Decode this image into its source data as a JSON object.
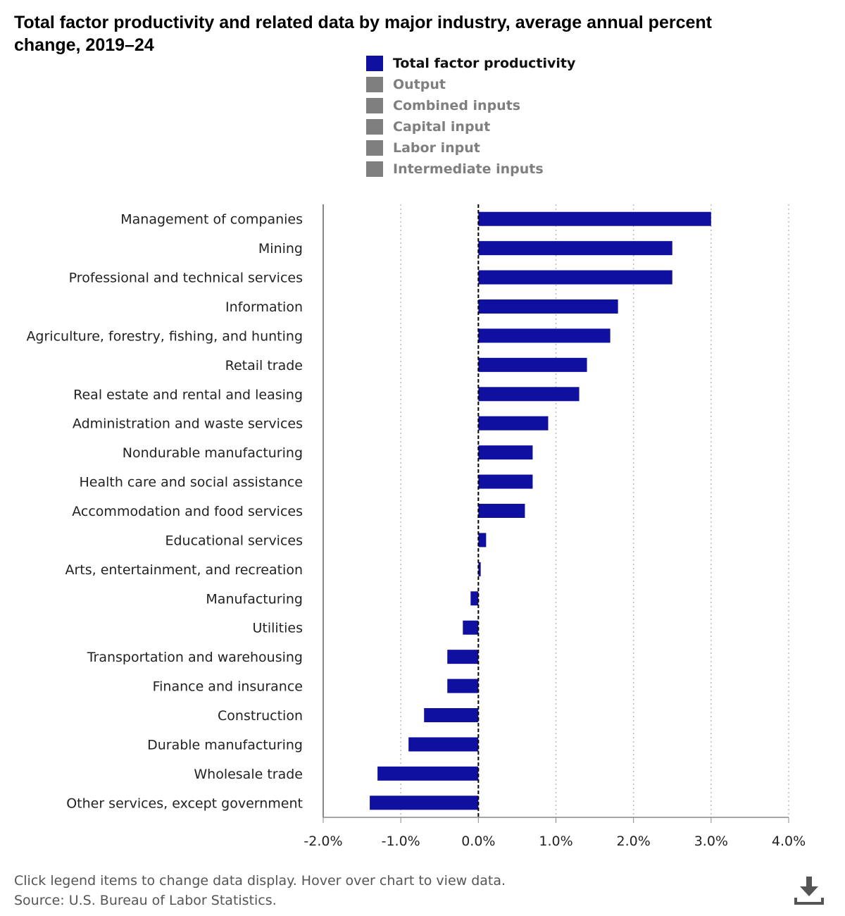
{
  "title": "Total factor productivity and related data by major industry, average annual percent change, 2019–24",
  "legend": [
    {
      "label": "Total factor productivity",
      "active": true,
      "color": "#1010a0"
    },
    {
      "label": "Output",
      "active": false,
      "color": "#7f7f7f"
    },
    {
      "label": "Combined inputs",
      "active": false,
      "color": "#7f7f7f"
    },
    {
      "label": "Capital input",
      "active": false,
      "color": "#7f7f7f"
    },
    {
      "label": "Labor input",
      "active": false,
      "color": "#7f7f7f"
    },
    {
      "label": "Intermediate inputs",
      "active": false,
      "color": "#7f7f7f"
    }
  ],
  "notes": {
    "line1": "Click legend items to change data display. Hover over chart to view data.",
    "line2": "Source: U.S. Bureau of Labor Statistics."
  },
  "icons": {
    "download": "download-icon"
  },
  "chart_data": {
    "type": "bar",
    "orientation": "horizontal",
    "title": "Total factor productivity and related data by major industry, average annual percent change, 2019–24",
    "categories": [
      "Management of companies",
      "Mining",
      "Professional and technical services",
      "Information",
      "Agriculture, forestry, fishing, and hunting",
      "Retail trade",
      "Real estate and rental and leasing",
      "Administration and waste services",
      "Nondurable manufacturing",
      "Health care and social assistance",
      "Accommodation and food services",
      "Educational services",
      "Arts, entertainment, and recreation",
      "Manufacturing",
      "Utilities",
      "Transportation and warehousing",
      "Finance and insurance",
      "Construction",
      "Durable manufacturing",
      "Wholesale trade",
      "Other services, except government"
    ],
    "series": [
      {
        "name": "Total factor productivity",
        "color": "#1010a0",
        "values": [
          3.0,
          2.5,
          2.5,
          1.8,
          1.7,
          1.4,
          1.3,
          0.9,
          0.7,
          0.7,
          0.6,
          0.1,
          0.03,
          -0.1,
          -0.2,
          -0.4,
          -0.4,
          -0.7,
          -0.9,
          -1.3,
          -1.4
        ]
      }
    ],
    "xlim": [
      -2,
      4
    ],
    "xticks": [
      -2,
      -1,
      0,
      1,
      2,
      3,
      4
    ],
    "xtick_labels": [
      "-2.0%",
      "-1.0%",
      "0.0%",
      "1.0%",
      "2.0%",
      "3.0%",
      "4.0%"
    ],
    "grid": "vertical dotted",
    "legend_position": "top"
  }
}
